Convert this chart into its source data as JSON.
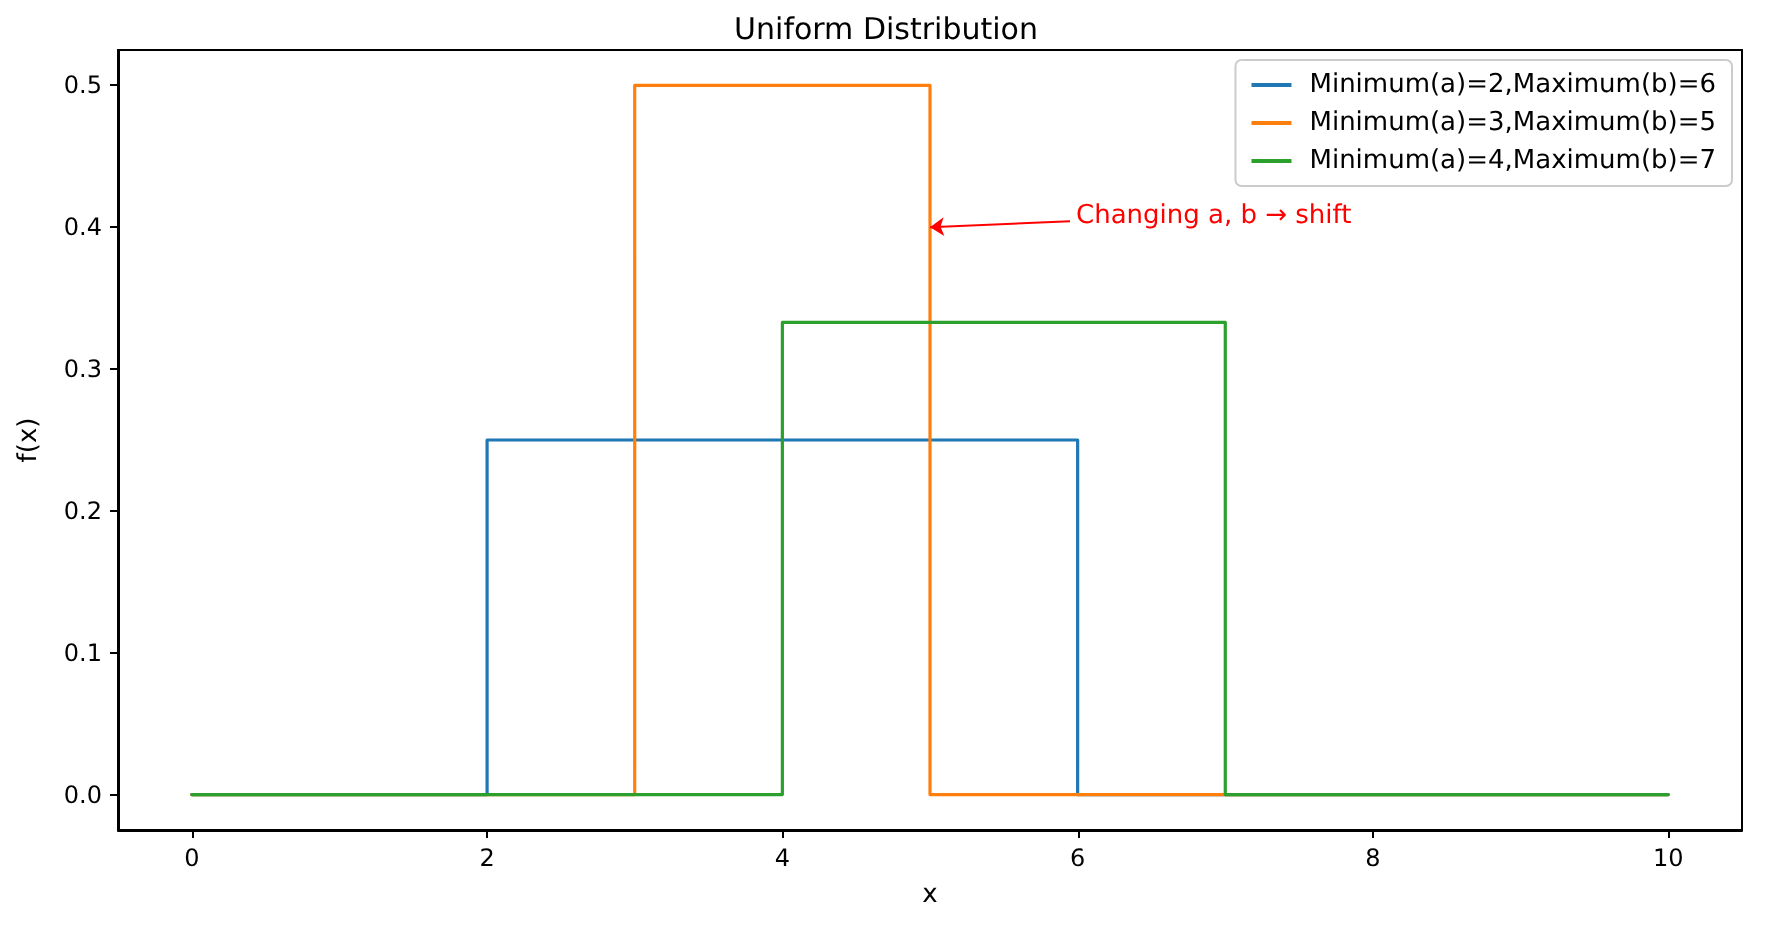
{
  "chart_data": {
    "type": "line",
    "title": "Uniform Distribution",
    "xlabel": "x",
    "ylabel": "f(x)",
    "series": [
      {
        "name": "Minimum(a)=2,Maximum(b)=6",
        "color": "#1f77b4",
        "x": [
          0,
          2,
          2,
          6,
          6,
          10
        ],
        "values": [
          0,
          0,
          0.25,
          0.25,
          0,
          0
        ]
      },
      {
        "name": "Minimum(a)=3,Maximum(b)=5",
        "color": "#ff7f0e",
        "x": [
          0,
          3,
          3,
          5,
          5,
          10
        ],
        "values": [
          0,
          0,
          0.5,
          0.5,
          0,
          0
        ]
      },
      {
        "name": "Minimum(a)=4,Maximum(b)=7",
        "color": "#2ca02c",
        "x": [
          0,
          4,
          4,
          7,
          7,
          10
        ],
        "values": [
          0,
          0,
          0.333,
          0.333,
          0,
          0
        ]
      }
    ],
    "xlim": [
      -0.5,
      10.5
    ],
    "ylim": [
      -0.025,
      0.525
    ],
    "xticks": [
      0,
      2,
      4,
      6,
      8,
      10
    ],
    "yticks": [
      {
        "value": 0,
        "label": "0.0"
      },
      {
        "value": 0.1,
        "label": "0.1"
      },
      {
        "value": 0.2,
        "label": "0.2"
      },
      {
        "value": 0.3,
        "label": "0.3"
      },
      {
        "value": 0.4,
        "label": "0.4"
      },
      {
        "value": 0.5,
        "label": "0.5"
      }
    ],
    "annotations": [
      {
        "text": "Changing a, b → shift",
        "x": 5,
        "y": 0.4
      }
    ],
    "grid": false,
    "legend": "top right",
    "marker": "none",
    "line_style": "solid"
  }
}
